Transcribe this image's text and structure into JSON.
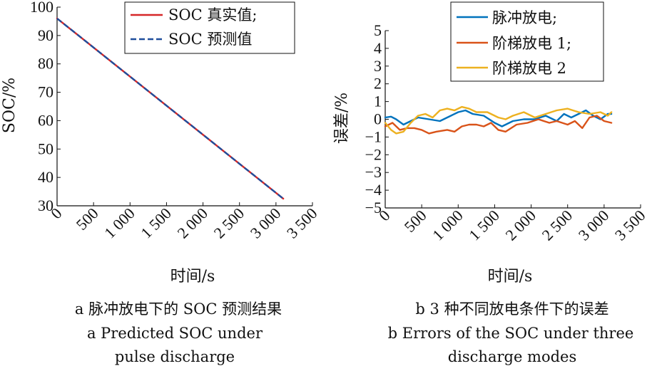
{
  "chart_data": [
    {
      "type": "line",
      "xlabel": "时间/s",
      "ylabel": "SOC/%",
      "xlim": [
        0,
        3500
      ],
      "ylim": [
        30,
        100
      ],
      "xticks": [
        0,
        500,
        1000,
        1500,
        2000,
        2500,
        3000,
        3500
      ],
      "xtick_labels": [
        "0",
        "500",
        "1 000",
        "1 500",
        "2 000",
        "2 500",
        "3 000",
        "3 500"
      ],
      "yticks": [
        30,
        40,
        50,
        60,
        70,
        80,
        90,
        100
      ],
      "ytick_labels": [
        "30",
        "40",
        "50",
        "60",
        "70",
        "80",
        "90",
        "100"
      ],
      "legend_position": "top-right",
      "series": [
        {
          "name": "SOC 真实值;",
          "color": "#d62728",
          "style": "solid",
          "x": [
            0,
            3100
          ],
          "y": [
            96,
            32.5
          ]
        },
        {
          "name": "SOC 预测值",
          "color": "#1f4e9c",
          "style": "dashed",
          "x": [
            0,
            3100
          ],
          "y": [
            96,
            32.5
          ]
        }
      ],
      "caption_cn": "a  脉冲放电下的 SOC 预测结果",
      "caption_en": [
        "a  Predicted SOC under",
        "pulse discharge"
      ]
    },
    {
      "type": "line",
      "xlabel": "时间/s",
      "ylabel": "误差/%",
      "xlim": [
        0,
        3500
      ],
      "ylim": [
        -5,
        5
      ],
      "xticks": [
        0,
        500,
        1000,
        1500,
        2000,
        2500,
        3000,
        3500
      ],
      "xtick_labels": [
        "0",
        "500",
        "1 000",
        "1 500",
        "2 000",
        "2 500",
        "3 000",
        "3 500"
      ],
      "yticks": [
        -5,
        -4,
        -3,
        -2,
        -1,
        0,
        1,
        2,
        3,
        4,
        5
      ],
      "ytick_labels": [
        "−5",
        "−4",
        "−3",
        "−2",
        "−1",
        "0",
        "1",
        "2",
        "3",
        "4",
        "5"
      ],
      "legend_position": "top-right",
      "series": [
        {
          "name": "脉冲放电;",
          "color": "#0072bd",
          "x": [
            0,
            80,
            150,
            250,
            350,
            450,
            600,
            750,
            900,
            1000,
            1100,
            1200,
            1350,
            1500,
            1600,
            1750,
            1900,
            2050,
            2200,
            2350,
            2450,
            2550,
            2650,
            2750,
            2850,
            2950,
            3050,
            3100
          ],
          "y": [
            0.1,
            0.15,
            0.0,
            -0.3,
            -0.1,
            0.1,
            0.0,
            -0.1,
            0.2,
            0.4,
            0.5,
            0.3,
            0.2,
            -0.2,
            -0.4,
            -0.1,
            0.0,
            0.0,
            0.2,
            -0.1,
            0.3,
            0.1,
            0.3,
            0.5,
            0.2,
            0.0,
            0.3,
            0.3
          ]
        },
        {
          "name": "阶梯放电 1;",
          "color": "#d95319",
          "x": [
            0,
            100,
            200,
            300,
            400,
            500,
            600,
            700,
            850,
            950,
            1050,
            1150,
            1250,
            1350,
            1450,
            1550,
            1650,
            1800,
            1950,
            2100,
            2250,
            2350,
            2500,
            2600,
            2700,
            2800,
            2900,
            3000,
            3100
          ],
          "y": [
            -0.4,
            -0.2,
            -0.6,
            -0.5,
            -0.5,
            -0.6,
            -0.8,
            -0.7,
            -0.6,
            -0.7,
            -0.4,
            -0.3,
            -0.3,
            -0.4,
            -0.2,
            -0.6,
            -0.7,
            -0.3,
            -0.2,
            0.0,
            -0.2,
            -0.1,
            -0.3,
            -0.1,
            -0.5,
            0.1,
            0.2,
            -0.1,
            -0.2
          ]
        },
        {
          "name": "阶梯放电 2",
          "color": "#edb120",
          "x": [
            0,
            80,
            150,
            250,
            350,
            450,
            550,
            650,
            750,
            850,
            950,
            1050,
            1150,
            1250,
            1400,
            1550,
            1650,
            1750,
            1900,
            2050,
            2200,
            2350,
            2500,
            2650,
            2800,
            2950,
            3050,
            3100
          ],
          "y": [
            -0.2,
            -0.6,
            -0.8,
            -0.7,
            -0.2,
            0.2,
            0.3,
            0.1,
            0.5,
            0.6,
            0.5,
            0.7,
            0.6,
            0.4,
            0.4,
            0.1,
            0.0,
            0.2,
            0.4,
            0.1,
            0.3,
            0.5,
            0.6,
            0.4,
            0.3,
            0.4,
            0.2,
            0.4
          ]
        }
      ],
      "caption_cn": "b  3 种不同放电条件下的误差",
      "caption_en": [
        "b  Errors of the SOC under three",
        "discharge modes"
      ]
    }
  ]
}
